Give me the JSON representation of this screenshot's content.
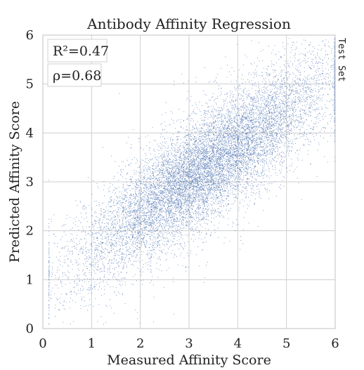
{
  "chart_data": {
    "type": "scatter",
    "title": "Antibody Affinity Regression",
    "xlabel": "Measured Affinity Score",
    "ylabel": "Predicted Affinity Score",
    "side_label": "Test Set",
    "xlim": [
      0,
      6
    ],
    "ylim": [
      0,
      6
    ],
    "xticks": [
      "0",
      "1",
      "2",
      "3",
      "4",
      "5",
      "6"
    ],
    "yticks": [
      "0",
      "1",
      "2",
      "3",
      "4",
      "5",
      "6"
    ],
    "grid": true,
    "annotations": [
      {
        "text": "R²=0.47"
      },
      {
        "text": "ρ=0.68"
      }
    ],
    "series": [
      {
        "color": "#4c72b0",
        "n_points": 12000,
        "trend": {
          "slope": 0.7,
          "intercept": 0.95
        },
        "points_sample": [
          [
            0.5,
            1.4
          ],
          [
            1.0,
            1.6
          ],
          [
            1.5,
            2.1
          ],
          [
            2.0,
            2.4
          ],
          [
            2.5,
            2.8
          ],
          [
            3.0,
            3.1
          ],
          [
            3.5,
            3.4
          ],
          [
            4.0,
            3.8
          ],
          [
            4.5,
            4.0
          ],
          [
            5.0,
            4.3
          ],
          [
            5.5,
            4.4
          ]
        ]
      }
    ]
  }
}
